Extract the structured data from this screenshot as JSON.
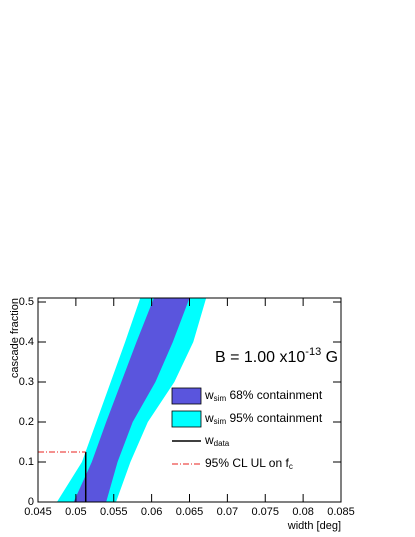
{
  "chart_data": {
    "type": "band",
    "x_label": "width [deg]",
    "y_label": "cascade fraction",
    "annotation": {
      "main": "B = 1.00 x10",
      "sup": "-13",
      "rest": " G"
    },
    "xlim": [
      0.045,
      0.085
    ],
    "xticks": [
      0.045,
      0.05,
      0.055,
      0.06,
      0.065,
      0.07,
      0.075,
      0.08,
      0.085
    ],
    "ylim": [
      0,
      0.51
    ],
    "yticks": [
      0,
      0.1,
      0.2,
      0.3,
      0.4,
      0.5
    ],
    "y_levels": [
      0,
      0.1,
      0.2,
      0.3,
      0.4,
      0.51
    ],
    "bands": [
      {
        "label": {
          "main": "w",
          "sub": "sim",
          "rest": " 95% containment"
        },
        "color": "#00ffff",
        "lower": [
          0.0475,
          0.0508,
          0.0527,
          0.0546,
          0.0565,
          0.0585
        ],
        "upper": [
          0.0553,
          0.0572,
          0.0595,
          0.063,
          0.0655,
          0.0672
        ]
      },
      {
        "label": {
          "main": "w",
          "sub": "sim",
          "rest": " 68% containment"
        },
        "color": "#5a55dd",
        "lower": [
          0.0497,
          0.0521,
          0.054,
          0.056,
          0.058,
          0.0603
        ],
        "upper": [
          0.054,
          0.0555,
          0.0575,
          0.0605,
          0.0628,
          0.065
        ]
      }
    ],
    "w_data": {
      "label": {
        "main": "w",
        "sub": "data"
      },
      "value": 0.0513,
      "color": "#000000"
    },
    "upper_limit": {
      "label": {
        "main": "95% CL UL on f",
        "sub": "c"
      },
      "value": 0.125,
      "color": "#e8201c"
    }
  }
}
